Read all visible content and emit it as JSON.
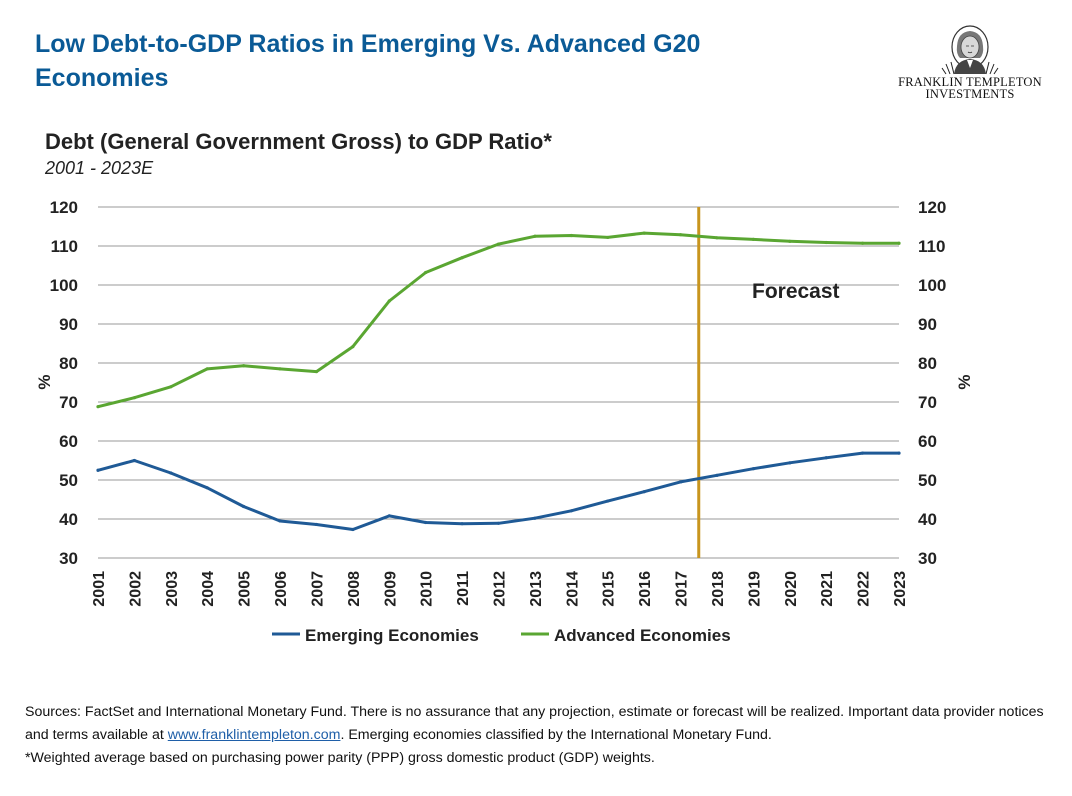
{
  "header": {
    "title": "Low Debt-to-GDP Ratios in Emerging Vs. Advanced G20 Economies"
  },
  "logo": {
    "line1": "FRANKLIN TEMPLETON",
    "line2": "INVESTMENTS"
  },
  "chart_data": {
    "type": "line",
    "title": "Debt (General Government Gross) to GDP Ratio*",
    "subtitle": "2001 - 2023E",
    "ylabel": "%",
    "y2label": "%",
    "ylim": [
      30,
      120
    ],
    "yticks": [
      30,
      40,
      50,
      60,
      70,
      80,
      90,
      100,
      110,
      120
    ],
    "grid": true,
    "legend_position": "bottom",
    "categories": [
      "2001",
      "2002",
      "2003",
      "2004",
      "2005",
      "2006",
      "2007",
      "2008",
      "2009",
      "2010",
      "2011",
      "2012",
      "2013",
      "2014",
      "2015",
      "2016",
      "2017",
      "2018",
      "2019",
      "2020",
      "2021",
      "2022",
      "2023"
    ],
    "series": [
      {
        "name": "Emerging Economies",
        "color": "#1f5a96",
        "values": [
          52.5,
          55.0,
          51.8,
          48.0,
          43.2,
          39.5,
          38.6,
          37.3,
          40.8,
          39.1,
          38.8,
          38.9,
          40.2,
          42.1,
          44.6,
          47.0,
          49.5,
          51.2,
          52.9,
          54.4,
          55.7,
          56.9,
          56.9
        ]
      },
      {
        "name": "Advanced Economies",
        "color": "#5aa632",
        "values": [
          68.8,
          71.1,
          73.9,
          78.5,
          79.3,
          78.5,
          77.8,
          84.2,
          95.9,
          103.2,
          107.0,
          110.5,
          112.5,
          112.7,
          112.2,
          113.3,
          112.9,
          112.1,
          111.7,
          111.2,
          110.9,
          110.7,
          110.7
        ]
      }
    ],
    "forecast_marker": {
      "label": "Forecast",
      "x": 2017.5,
      "color": "#c8951e"
    }
  },
  "footnote": {
    "line1": "Sources: FactSet and International Monetary Fund. There is no assurance that any projection, estimate or forecast will be realized. Important data provider notices and terms available at ",
    "link_text": "www.franklintempleton.com",
    "line1_end": ". Emerging economies classified by the International Monetary Fund.",
    "line2": "*Weighted average based on purchasing power parity (PPP) gross domestic product (GDP) weights."
  }
}
